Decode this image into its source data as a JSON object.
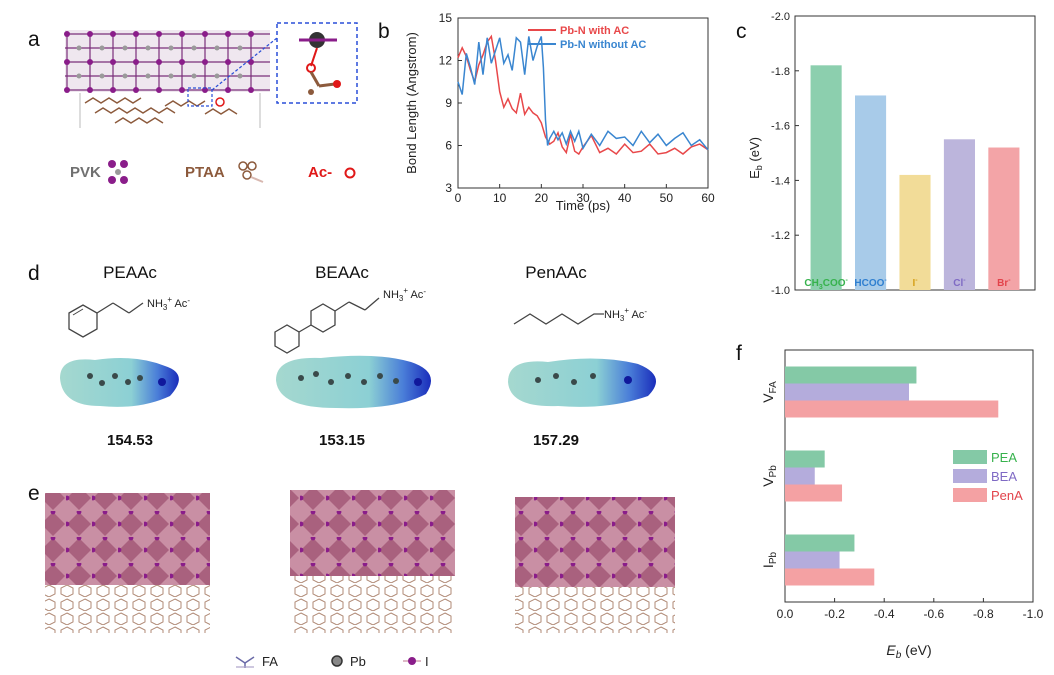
{
  "panels": {
    "a": {
      "label": "a",
      "legend": [
        {
          "text": "PVK",
          "color": "#707070"
        },
        {
          "text": "PTAA",
          "color": "#8c5a3c"
        },
        {
          "text": "Ac-",
          "color": "#e01818"
        }
      ]
    },
    "b": {
      "label": "b"
    },
    "c": {
      "label": "c"
    },
    "d": {
      "label": "d",
      "molecules": [
        {
          "name": "PEAAc",
          "formula": "NH3+ Ac-",
          "value": "154.53"
        },
        {
          "name": "BEAAc",
          "formula": "NH3+ Ac-",
          "value": "153.15"
        },
        {
          "name": "PenAAc",
          "formula": "NH3+ Ac-",
          "value": "157.29"
        }
      ]
    },
    "e": {
      "label": "e",
      "legend": [
        {
          "text": "FA",
          "color": "#6a6aa8"
        },
        {
          "text": "Pb",
          "color": "#555555"
        },
        {
          "text": "I",
          "color": "#8a1d8a"
        }
      ]
    },
    "f": {
      "label": "f"
    }
  },
  "chart_data": [
    {
      "panel": "b",
      "type": "line",
      "xlabel": "Time (ps)",
      "ylabel": "Bond Length (Angstrom)",
      "xlim": [
        0,
        60
      ],
      "ylim": [
        3,
        15
      ],
      "xticks": [
        0,
        10,
        20,
        30,
        40,
        50,
        60
      ],
      "yticks": [
        3,
        6,
        9,
        12,
        15
      ],
      "series": [
        {
          "name": "Pb-N with AC",
          "color": "#e8484a",
          "x": [
            0,
            1,
            2,
            3,
            4,
            5,
            6,
            7,
            8,
            9,
            10,
            11,
            12,
            13,
            14,
            15,
            16,
            17,
            18,
            19,
            20,
            21,
            22,
            23,
            24,
            25,
            26,
            27,
            28,
            29,
            30,
            32,
            34,
            36,
            38,
            40,
            42,
            44,
            46,
            48,
            50,
            52,
            54,
            56,
            58,
            60
          ],
          "y": [
            12.2,
            12.9,
            12.3,
            11.3,
            10.5,
            11.7,
            12.4,
            13.3,
            13.7,
            12.0,
            9.8,
            8.7,
            9.3,
            8.6,
            8.3,
            9.7,
            8.2,
            8.7,
            8.3,
            8.1,
            7.6,
            6.6,
            6.1,
            6.3,
            6.9,
            5.9,
            5.5,
            6.8,
            5.6,
            5.4,
            5.9,
            6.7,
            5.5,
            5.8,
            5.4,
            6.1,
            5.5,
            5.6,
            6.1,
            5.4,
            5.5,
            5.8,
            5.4,
            5.9,
            6.1,
            5.7
          ]
        },
        {
          "name": "Pb-N without AC",
          "color": "#3a86d0",
          "x": [
            0,
            1,
            2,
            3,
            4,
            5,
            6,
            7,
            8,
            9,
            10,
            11,
            12,
            13,
            14,
            15,
            16,
            17,
            18,
            19,
            20,
            20.5,
            21,
            21.5,
            22,
            23,
            24,
            25,
            26,
            27,
            28,
            29,
            30,
            32,
            34,
            36,
            38,
            40,
            42,
            44,
            46,
            48,
            50,
            52,
            54,
            56,
            58,
            60
          ],
          "y": [
            10.5,
            9.6,
            12.5,
            11.5,
            10.3,
            13.3,
            11.0,
            13.6,
            11.8,
            12.7,
            13.6,
            11.8,
            12.4,
            11.3,
            13.6,
            13.3,
            11.0,
            13.7,
            12.0,
            13.0,
            13.7,
            11.5,
            7.8,
            6.0,
            6.5,
            7.0,
            6.4,
            6.9,
            6.1,
            7.0,
            6.3,
            7.0,
            5.8,
            6.8,
            6.0,
            7.0,
            6.5,
            6.6,
            6.0,
            7.0,
            6.2,
            6.8,
            6.0,
            6.5,
            6.9,
            6.0,
            6.4,
            5.7
          ]
        }
      ]
    },
    {
      "panel": "c",
      "type": "bar",
      "ylabel": "Eb (eV)",
      "ylim": [
        -1.0,
        -2.0
      ],
      "yticks": [
        "-2.0",
        "-1.8",
        "-1.6",
        "-1.4",
        "-1.2",
        "-1.0"
      ],
      "categories": [
        "CH3COO-",
        "HCOO-",
        "I-",
        "Cl-",
        "Br-"
      ],
      "values": [
        -1.82,
        -1.71,
        -1.42,
        -1.55,
        -1.52
      ],
      "colors": [
        "#8ccfae",
        "#a8cbe9",
        "#f2dc98",
        "#bcb5dc",
        "#f3a4a7"
      ],
      "label_colors": [
        "#37b24d",
        "#2f7fd0",
        "#d6a11b",
        "#7f6ac4",
        "#e2434b"
      ]
    },
    {
      "panel": "f",
      "type": "bar",
      "orientation": "horizontal",
      "xlabel": "Eb (eV)",
      "xlim": [
        0.0,
        -1.0
      ],
      "xticks": [
        "0.0",
        "-0.2",
        "-0.4",
        "-0.6",
        "-0.8",
        "-1.0"
      ],
      "categories": [
        "VFA",
        "VPb",
        "IPb"
      ],
      "series": [
        {
          "name": "PEA",
          "color": "#84c9a6",
          "label_color": "#37b24d",
          "values": [
            -0.53,
            -0.16,
            -0.28
          ]
        },
        {
          "name": "BEA",
          "color": "#b4acdc",
          "label_color": "#7f6ac4",
          "values": [
            -0.5,
            -0.12,
            -0.22
          ]
        },
        {
          "name": "PenA",
          "color": "#f4a1a3",
          "label_color": "#e2434b",
          "values": [
            -0.86,
            -0.23,
            -0.36
          ]
        }
      ]
    }
  ]
}
